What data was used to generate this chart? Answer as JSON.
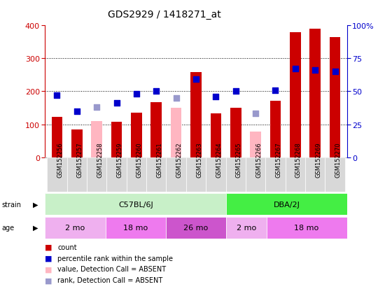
{
  "title": "GDS2929 / 1418271_at",
  "samples": [
    "GSM152256",
    "GSM152257",
    "GSM152258",
    "GSM152259",
    "GSM152260",
    "GSM152261",
    "GSM152262",
    "GSM152263",
    "GSM152264",
    "GSM152265",
    "GSM152266",
    "GSM152267",
    "GSM152268",
    "GSM152269",
    "GSM152270"
  ],
  "count_present": [
    122,
    85,
    null,
    107,
    135,
    167,
    null,
    258,
    134,
    150,
    null,
    172,
    380,
    390,
    365
  ],
  "count_absent": [
    null,
    null,
    110,
    null,
    null,
    null,
    150,
    null,
    null,
    null,
    78,
    null,
    null,
    null,
    null
  ],
  "rank_present": [
    47,
    35,
    null,
    41,
    48,
    50,
    null,
    59,
    46,
    50,
    null,
    51,
    67,
    66,
    65
  ],
  "rank_absent": [
    null,
    null,
    38,
    null,
    null,
    null,
    45,
    null,
    null,
    null,
    33,
    null,
    null,
    null,
    null
  ],
  "strain_groups": [
    {
      "label": "C57BL/6J",
      "start": 0,
      "end": 9,
      "color": "#C8F0C8"
    },
    {
      "label": "DBA/2J",
      "start": 9,
      "end": 15,
      "color": "#44EE44"
    }
  ],
  "age_groups": [
    {
      "label": "2 mo",
      "start": 0,
      "end": 3,
      "color": "#EFB0EF"
    },
    {
      "label": "18 mo",
      "start": 3,
      "end": 6,
      "color": "#EE7AEE"
    },
    {
      "label": "26 mo",
      "start": 6,
      "end": 9,
      "color": "#CC55CC"
    },
    {
      "label": "2 mo",
      "start": 9,
      "end": 11,
      "color": "#EFB0EF"
    },
    {
      "label": "18 mo",
      "start": 11,
      "end": 15,
      "color": "#EE7AEE"
    }
  ],
  "bar_color_present": "#CC0000",
  "bar_color_absent": "#FFB6C1",
  "rank_color_present": "#0000CC",
  "rank_color_absent": "#9999CC",
  "ylim_left": [
    0,
    400
  ],
  "ylim_right": [
    0,
    100
  ],
  "yticks_left": [
    0,
    100,
    200,
    300,
    400
  ],
  "yticks_right": [
    0,
    25,
    50,
    75,
    100
  ],
  "ylabel_left_color": "#CC0000",
  "ylabel_right_color": "#0000CC",
  "background_color": "#ffffff",
  "plot_bg": "#ffffff",
  "title_fontsize": 10,
  "tick_fontsize": 8,
  "bar_width": 0.55
}
